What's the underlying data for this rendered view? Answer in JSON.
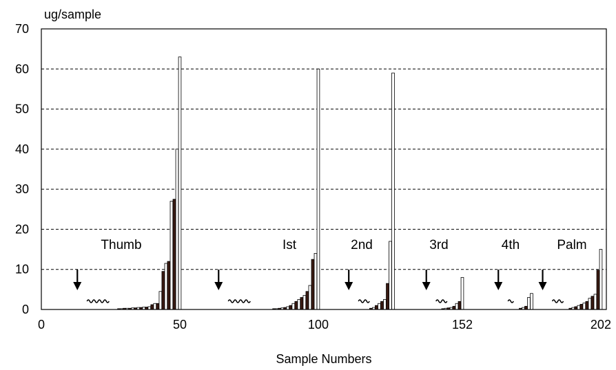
{
  "chart_data": {
    "type": "bar",
    "ylabel": "ug/sample",
    "xlabel": "Sample Numbers",
    "ylim": [
      0,
      70
    ],
    "xlim": [
      0,
      204
    ],
    "y_ticks": [
      0,
      10,
      20,
      30,
      40,
      50,
      60,
      70
    ],
    "x_ticks": [
      0,
      50,
      100,
      152,
      202
    ],
    "grid": "horizontal dashed",
    "colors": {
      "dark_bar": "#3a1a12",
      "light_bar": "#ffffff",
      "outline": "#000000"
    },
    "groups": [
      {
        "label": "Thumb",
        "arrow_x": 13,
        "x": [
          28,
          29,
          30,
          31,
          32,
          33,
          34,
          35,
          36,
          37,
          38,
          39,
          40,
          41,
          42,
          43,
          44,
          45,
          46,
          47,
          48,
          49,
          50
        ],
        "values": [
          0.2,
          0.2,
          0.3,
          0.3,
          0.3,
          0.4,
          0.4,
          0.5,
          0.5,
          0.6,
          0.6,
          0.7,
          1.2,
          1.5,
          1.5,
          4.5,
          9.5,
          11.5,
          12,
          27,
          27.5,
          40,
          63
        ]
      },
      {
        "label": "Ist",
        "arrow_x": 64,
        "x": [
          84,
          85,
          86,
          87,
          88,
          89,
          90,
          91,
          92,
          93,
          94,
          95,
          96,
          97,
          98,
          99,
          100
        ],
        "values": [
          0.2,
          0.2,
          0.3,
          0.4,
          0.5,
          0.7,
          1,
          1.5,
          2,
          2.5,
          3,
          3.5,
          4.5,
          6,
          12.5,
          14,
          60
        ]
      },
      {
        "label": "2nd",
        "arrow_x": 111,
        "x": [
          119,
          120,
          121,
          122,
          123,
          124,
          125,
          126,
          127
        ],
        "values": [
          0.3,
          0.5,
          1,
          1.5,
          2,
          2.5,
          6.5,
          17,
          59
        ]
      },
      {
        "label": "3rd",
        "arrow_x": 139,
        "x": [
          145,
          146,
          147,
          148,
          149,
          150,
          151,
          152
        ],
        "values": [
          0.2,
          0.3,
          0.4,
          0.5,
          0.8,
          1.5,
          2,
          8
        ]
      },
      {
        "label": "4th",
        "arrow_x": 165,
        "x": [
          173,
          174,
          175,
          176,
          177
        ],
        "values": [
          0.3,
          0.5,
          0.8,
          3,
          4
        ]
      },
      {
        "label": "Palm",
        "arrow_x": 181,
        "x": [
          191,
          192,
          193,
          194,
          195,
          196,
          197,
          198,
          199,
          200,
          201,
          202
        ],
        "values": [
          0.3,
          0.5,
          0.7,
          1,
          1.3,
          1.6,
          2,
          2.8,
          3.3,
          3.8,
          9.8,
          15
        ]
      }
    ]
  }
}
